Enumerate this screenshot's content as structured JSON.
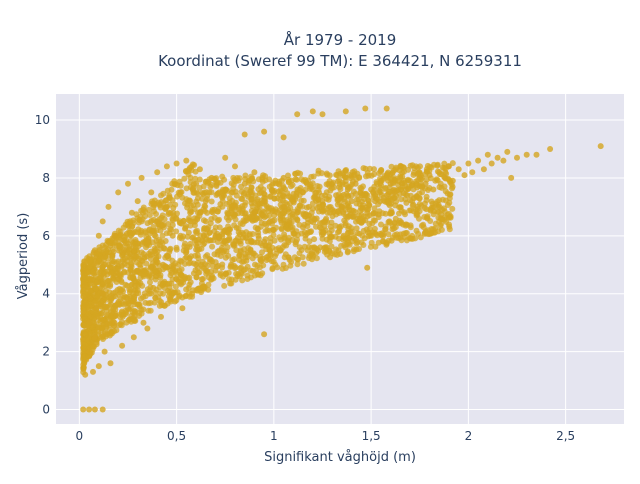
{
  "chart_data": {
    "type": "scatter",
    "title_line1": "År 1979 - 2019",
    "title_line2": "Koordinat (Sweref 99 TM): E 364421, N 6259311",
    "xlabel": "Signifikant våghöjd (m)",
    "ylabel": "Vågperiod (s)",
    "xlim": [
      -0.12,
      2.8
    ],
    "ylim": [
      -0.5,
      10.9
    ],
    "x_ticks": [
      {
        "value": 0,
        "label": "0"
      },
      {
        "value": 0.5,
        "label": "0,5"
      },
      {
        "value": 1,
        "label": "1"
      },
      {
        "value": 1.5,
        "label": "1,5"
      },
      {
        "value": 2,
        "label": "2"
      },
      {
        "value": 2.5,
        "label": "2,5"
      }
    ],
    "y_ticks": [
      {
        "value": 0,
        "label": "0"
      },
      {
        "value": 2,
        "label": "2"
      },
      {
        "value": 4,
        "label": "4"
      },
      {
        "value": 6,
        "label": "6"
      },
      {
        "value": 8,
        "label": "8"
      },
      {
        "value": 10,
        "label": "10"
      }
    ],
    "grid": true,
    "marker_color": "#D4A520",
    "background_color": "#E5E5F0",
    "series": [
      {
        "values": [
          [
            0.03,
            1.2
          ],
          [
            0.05,
            2.0
          ],
          [
            0.05,
            3.0
          ],
          [
            0.06,
            4.5
          ],
          [
            0.07,
            1.3
          ],
          [
            0.08,
            5.5
          ],
          [
            0.08,
            2.5
          ],
          [
            0.09,
            3.5
          ],
          [
            0.1,
            6.0
          ],
          [
            0.1,
            1.5
          ],
          [
            0.12,
            4.0
          ],
          [
            0.12,
            6.5
          ],
          [
            0.13,
            2.0
          ],
          [
            0.15,
            5.0
          ],
          [
            0.15,
            7.0
          ],
          [
            0.16,
            1.6
          ],
          [
            0.18,
            3.0
          ],
          [
            0.18,
            6.0
          ],
          [
            0.2,
            7.5
          ],
          [
            0.2,
            4.5
          ],
          [
            0.22,
            2.2
          ],
          [
            0.23,
            5.5
          ],
          [
            0.25,
            7.8
          ],
          [
            0.25,
            3.5
          ],
          [
            0.27,
            6.8
          ],
          [
            0.28,
            2.5
          ],
          [
            0.3,
            4.8
          ],
          [
            0.3,
            7.2
          ],
          [
            0.32,
            8.0
          ],
          [
            0.33,
            3.0
          ],
          [
            0.35,
            5.8
          ],
          [
            0.35,
            2.8
          ],
          [
            0.37,
            7.5
          ],
          [
            0.38,
            4.2
          ],
          [
            0.4,
            6.5
          ],
          [
            0.4,
            8.2
          ],
          [
            0.42,
            3.2
          ],
          [
            0.43,
            5.0
          ],
          [
            0.45,
            7.0
          ],
          [
            0.45,
            8.4
          ],
          [
            0.47,
            3.8
          ],
          [
            0.48,
            6.0
          ],
          [
            0.5,
            8.5
          ],
          [
            0.5,
            4.5
          ],
          [
            0.52,
            7.5
          ],
          [
            0.53,
            3.5
          ],
          [
            0.55,
            5.5
          ],
          [
            0.55,
            8.6
          ],
          [
            0.57,
            6.8
          ],
          [
            0.58,
            4.0
          ],
          [
            0.6,
            7.8
          ],
          [
            0.6,
            5.0
          ],
          [
            0.62,
            8.3
          ],
          [
            0.63,
            4.5
          ],
          [
            0.65,
            6.5
          ],
          [
            0.65,
            7.2
          ],
          [
            0.67,
            5.2
          ],
          [
            0.68,
            8.0
          ],
          [
            0.7,
            6.0
          ],
          [
            0.7,
            4.8
          ],
          [
            0.72,
            7.5
          ],
          [
            0.73,
            5.5
          ],
          [
            0.75,
            8.7
          ],
          [
            0.75,
            6.2
          ],
          [
            0.78,
            5.0
          ],
          [
            0.8,
            7.0
          ],
          [
            0.8,
            8.4
          ],
          [
            0.82,
            5.8
          ],
          [
            0.85,
            6.5
          ],
          [
            0.85,
            7.8
          ],
          [
            0.88,
            5.5
          ],
          [
            0.9,
            6.8
          ],
          [
            0.9,
            8.2
          ],
          [
            0.92,
            6.0
          ],
          [
            0.95,
            7.2
          ],
          [
            0.95,
            5.8
          ],
          [
            0.98,
            6.5
          ],
          [
            1.0,
            7.5
          ],
          [
            1.0,
            6.2
          ],
          [
            1.02,
            6.8
          ],
          [
            1.05,
            7.0
          ],
          [
            1.05,
            8.0
          ],
          [
            1.08,
            6.5
          ],
          [
            1.1,
            7.2
          ],
          [
            1.12,
            6.8
          ],
          [
            1.15,
            7.5
          ],
          [
            1.15,
            6.3
          ],
          [
            1.18,
            7.0
          ],
          [
            1.2,
            7.6
          ],
          [
            1.22,
            6.6
          ],
          [
            1.25,
            7.2
          ],
          [
            1.28,
            7.8
          ],
          [
            1.3,
            6.9
          ],
          [
            1.32,
            7.4
          ],
          [
            1.35,
            7.0
          ],
          [
            1.38,
            7.6
          ],
          [
            1.4,
            7.2
          ],
          [
            1.42,
            7.8
          ],
          [
            1.45,
            7.4
          ],
          [
            1.48,
            6.8
          ],
          [
            1.5,
            7.6
          ],
          [
            1.52,
            7.2
          ],
          [
            1.55,
            7.9
          ],
          [
            1.58,
            7.4
          ],
          [
            1.6,
            7.8
          ],
          [
            1.62,
            7.5
          ],
          [
            1.65,
            8.0
          ],
          [
            1.68,
            7.6
          ],
          [
            1.7,
            7.9
          ],
          [
            1.72,
            7.3
          ],
          [
            1.75,
            8.0
          ],
          [
            1.78,
            7.8
          ],
          [
            1.8,
            8.1
          ],
          [
            1.82,
            7.6
          ],
          [
            1.85,
            8.2
          ],
          [
            1.88,
            8.0
          ],
          [
            1.9,
            8.4
          ],
          [
            1.92,
            7.9
          ],
          [
            1.95,
            8.3
          ],
          [
            1.98,
            8.1
          ],
          [
            2.0,
            8.5
          ],
          [
            2.02,
            8.2
          ],
          [
            2.05,
            8.6
          ],
          [
            2.08,
            8.3
          ],
          [
            2.1,
            8.8
          ],
          [
            2.12,
            8.5
          ],
          [
            2.15,
            8.7
          ],
          [
            2.18,
            8.6
          ],
          [
            2.2,
            8.9
          ],
          [
            2.22,
            8.0
          ],
          [
            2.25,
            8.7
          ],
          [
            2.3,
            8.8
          ],
          [
            2.35,
            8.8
          ],
          [
            2.42,
            9.0
          ],
          [
            2.68,
            9.1
          ],
          [
            1.12,
            10.2
          ],
          [
            1.2,
            10.3
          ],
          [
            1.25,
            10.2
          ],
          [
            1.37,
            10.3
          ],
          [
            1.47,
            10.4
          ],
          [
            1.58,
            10.4
          ],
          [
            0.85,
            9.5
          ],
          [
            0.95,
            9.6
          ],
          [
            1.05,
            9.4
          ],
          [
            1.48,
            4.9
          ],
          [
            0.95,
            2.6
          ],
          [
            0.02,
            0
          ],
          [
            0.05,
            0
          ],
          [
            0.08,
            0
          ],
          [
            0.12,
            0
          ]
        ]
      }
    ]
  }
}
